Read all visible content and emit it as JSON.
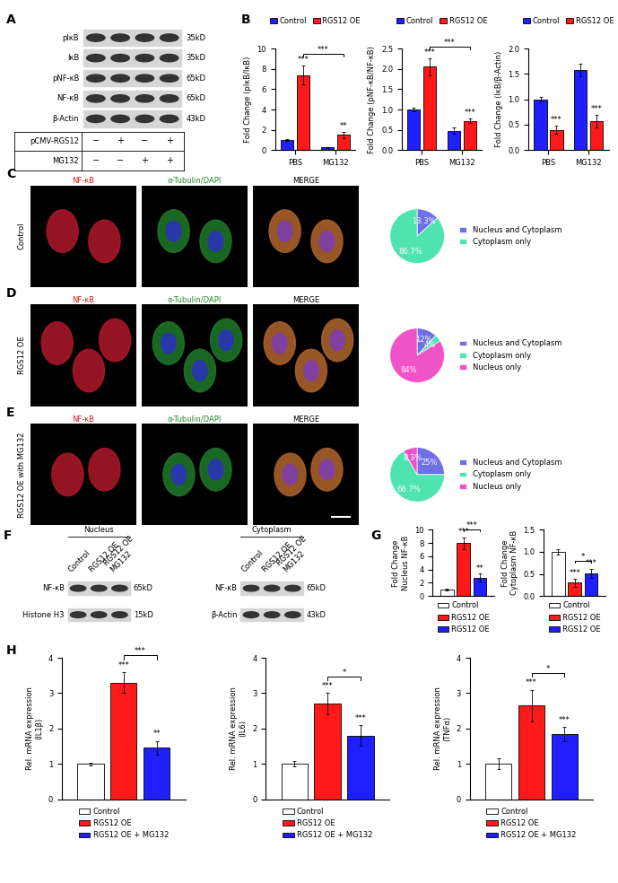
{
  "panel_labels": [
    "A",
    "B",
    "C",
    "D",
    "E",
    "F",
    "G",
    "H"
  ],
  "blot_A": {
    "rows": [
      {
        "name": "pIκB",
        "size": "35kD"
      },
      {
        "name": "IκB",
        "size": "35kD"
      },
      {
        "name": "pNF-κB",
        "size": "65kD"
      },
      {
        "name": "NF-κB",
        "size": "65kD"
      },
      {
        "name": "β-Actin",
        "size": "43kD"
      }
    ],
    "conditions": [
      {
        "name": "pCMV-RGS12",
        "signs": [
          "−",
          "+",
          "−",
          "+"
        ]
      },
      {
        "name": "MG132",
        "signs": [
          "−",
          "−",
          "+",
          "+"
        ]
      }
    ]
  },
  "micrographs": {
    "columns": [
      "NF-κB",
      "α-Tubulin/DAPI",
      "MERGE"
    ],
    "rows": [
      "Control",
      "RGS12 OE",
      "RGS12 OE with MG132"
    ]
  },
  "blot_F": {
    "lanes": [
      "Control",
      "RGS12 OE",
      "RGS12 OE\nMG132"
    ],
    "fractions": [
      {
        "title": "Nucleus",
        "rows": [
          {
            "name": "NF-κB",
            "size": "65kD"
          },
          {
            "name": "Histone H3",
            "size": "15kD"
          }
        ]
      },
      {
        "title": "Cytoplasm",
        "rows": [
          {
            "name": "NF-κB",
            "size": "65kD"
          },
          {
            "name": "β-Actin",
            "size": "43kD"
          }
        ]
      }
    ]
  },
  "chart_data": [
    {
      "type": "bar",
      "ylabel": "Fold Change (pIκB/IκB)",
      "categories": [
        "PBS",
        "MG132"
      ],
      "series": [
        {
          "name": "Control",
          "color": "#1f1fff",
          "values": [
            1.0,
            0.25
          ],
          "errors": [
            0.08,
            0.04
          ]
        },
        {
          "name": "RGS12 OE",
          "color": "#ff1a1a",
          "values": [
            7.4,
            1.5
          ],
          "errors": [
            0.9,
            0.3
          ]
        }
      ],
      "ylim": [
        0,
        10
      ],
      "yticks": [
        0,
        2,
        4,
        6,
        8,
        10
      ],
      "legend": "top",
      "annotations": [
        {
          "series": 1,
          "category": 0,
          "text": "***"
        },
        {
          "series": 1,
          "category": 1,
          "text": "**"
        }
      ],
      "brackets": [
        {
          "from": [
            1,
            0
          ],
          "to": [
            1,
            1
          ],
          "text": "***"
        }
      ]
    },
    {
      "type": "bar",
      "ylabel": "Fold Change (pNF-κB/NF-κB)",
      "categories": [
        "PBS",
        "MG132"
      ],
      "series": [
        {
          "name": "Control",
          "color": "#1f1fff",
          "values": [
            1.0,
            0.48
          ],
          "errors": [
            0.05,
            0.07
          ]
        },
        {
          "name": "RGS12 OE",
          "color": "#ff1a1a",
          "values": [
            2.05,
            0.72
          ],
          "errors": [
            0.2,
            0.05
          ]
        }
      ],
      "ylim": [
        0,
        2.5
      ],
      "yticks": [
        {
          "value": 0,
          "label": "0.0"
        },
        0.5,
        {
          "value": 1,
          "label": "1.0"
        },
        1.5,
        {
          "value": 2,
          "label": "2.0"
        },
        2.5
      ],
      "legend": "top",
      "annotations": [
        {
          "series": 1,
          "category": 0,
          "text": "***"
        },
        {
          "series": 1,
          "category": 1,
          "text": "***"
        }
      ],
      "brackets": [
        {
          "from": [
            1,
            0
          ],
          "to": [
            1,
            1
          ],
          "text": "***"
        }
      ]
    },
    {
      "type": "bar",
      "ylabel": "Fold Change (IκB/β-Actin)",
      "categories": [
        "PBS",
        "MG132"
      ],
      "series": [
        {
          "name": "Control",
          "color": "#1f1fff",
          "values": [
            1.0,
            1.58
          ],
          "errors": [
            0.04,
            0.12
          ]
        },
        {
          "name": "RGS12 OE",
          "color": "#ff1a1a",
          "values": [
            0.4,
            0.57
          ],
          "errors": [
            0.08,
            0.12
          ]
        }
      ],
      "ylim": [
        0,
        2.0
      ],
      "yticks": [
        {
          "value": 0,
          "label": "0.0"
        },
        0.5,
        {
          "value": 1,
          "label": "1.0"
        },
        1.5,
        {
          "value": 2,
          "label": "2.0"
        }
      ],
      "legend": "top",
      "annotations": [
        {
          "series": 1,
          "category": 0,
          "text": "***"
        },
        {
          "series": 1,
          "category": 1,
          "text": "***"
        }
      ],
      "brackets": []
    },
    {
      "type": "pie",
      "categories": [
        "Nucleus and Cytoplasm",
        "Cytoplasm only"
      ],
      "values": [
        13.3,
        86.7
      ],
      "value_labels": [
        "13.3%",
        "86.7%"
      ],
      "colors": [
        "#6f6fe8",
        "#4fe3b0"
      ],
      "data_labels": true,
      "legend": "right"
    },
    {
      "type": "pie",
      "categories": [
        "Nucleus and Cytoplasm",
        "Cytoplasm only",
        "Nucleus only"
      ],
      "values": [
        12,
        4,
        84
      ],
      "value_labels": [
        "12%",
        "4%",
        "84%"
      ],
      "colors": [
        "#6f6fe8",
        "#4fe3b0",
        "#f052c8"
      ],
      "data_labels": true,
      "legend": "right"
    },
    {
      "type": "pie",
      "categories": [
        "Nucleus and Cytoplasm",
        "Cytoplasm only",
        "Nucleus only"
      ],
      "values": [
        25,
        66.7,
        8.3
      ],
      "value_labels": [
        "25%",
        "66.7%",
        "8.3%"
      ],
      "colors": [
        "#6f6fe8",
        "#4fe3b0",
        "#f052c8"
      ],
      "data_labels": true,
      "legend": "right"
    },
    {
      "type": "bar",
      "ylabel": "Fold Change\nNucleus NF-κB",
      "categories": [
        null
      ],
      "tick_labels": "y",
      "series": [
        {
          "name": "Control",
          "color": "#ffffff",
          "values": [
            1.0
          ],
          "errors": [
            0.15
          ]
        },
        {
          "name": "RGS12 OE",
          "color": "#ff1a1a",
          "values": [
            8.0
          ],
          "errors": [
            0.9
          ]
        },
        {
          "name": "RGS12 OE",
          "color": "#1f1fff",
          "values": [
            2.8
          ],
          "errors": [
            0.6
          ]
        }
      ],
      "ylim": [
        0,
        10
      ],
      "yticks": [
        0,
        2,
        4,
        6,
        8,
        10
      ],
      "legend": "bottom",
      "annotations": [
        {
          "series": 1,
          "category": 0,
          "text": "***"
        },
        {
          "series": 2,
          "category": 0,
          "text": "**"
        }
      ],
      "brackets": [
        {
          "from": [
            1,
            0
          ],
          "to": [
            2,
            0
          ],
          "text": "***"
        }
      ]
    },
    {
      "type": "bar",
      "ylabel": "Fold Change\nCytoplasm NF-κB",
      "categories": [
        null
      ],
      "tick_labels": "y",
      "series": [
        {
          "name": "Control",
          "color": "#ffffff",
          "values": [
            1.0
          ],
          "errors": [
            0.06
          ]
        },
        {
          "name": "RGS12 OE",
          "color": "#ff1a1a",
          "values": [
            0.3
          ],
          "errors": [
            0.1
          ]
        },
        {
          "name": "RGS12 OE",
          "color": "#1f1fff",
          "values": [
            0.52
          ],
          "errors": [
            0.1
          ]
        }
      ],
      "ylim": [
        0,
        1.5
      ],
      "yticks": [
        {
          "value": 0,
          "label": "0.0"
        },
        0.5,
        {
          "value": 1,
          "label": "1.0"
        },
        1.5
      ],
      "legend": "bottom",
      "annotations": [
        {
          "series": 1,
          "category": 0,
          "text": "***"
        },
        {
          "series": 2,
          "category": 0,
          "text": "***"
        }
      ],
      "brackets": [
        {
          "from": [
            1,
            0
          ],
          "to": [
            2,
            0
          ],
          "text": "*"
        }
      ]
    },
    {
      "type": "bar",
      "ylabel": "Rel. mRNA expression\n(IL1β)",
      "categories": [
        null
      ],
      "tick_labels": "y",
      "series": [
        {
          "name": "Control",
          "color": "#ffffff",
          "values": [
            1.0
          ],
          "errors": [
            0.04
          ]
        },
        {
          "name": "RGS12 OE",
          "color": "#ff1a1a",
          "values": [
            3.3
          ],
          "errors": [
            0.3
          ]
        },
        {
          "name": "RGS12 OE + MG132",
          "color": "#1f1fff",
          "values": [
            1.45
          ],
          "errors": [
            0.2
          ]
        }
      ],
      "ylim": [
        0,
        4
      ],
      "yticks": [
        0,
        1,
        2,
        3,
        4
      ],
      "legend": "bottom",
      "annotations": [
        {
          "series": 1,
          "category": 0,
          "text": "***"
        },
        {
          "series": 2,
          "category": 0,
          "text": "**"
        }
      ],
      "brackets": [
        {
          "from": [
            1,
            0
          ],
          "to": [
            2,
            0
          ],
          "text": "***"
        }
      ]
    },
    {
      "type": "bar",
      "ylabel": "Rel. mRNA expression\n(IL6)",
      "categories": [
        null
      ],
      "tick_labels": "y",
      "series": [
        {
          "name": "Control",
          "color": "#ffffff",
          "values": [
            1.0
          ],
          "errors": [
            0.08
          ]
        },
        {
          "name": "RGS12 OE",
          "color": "#ff1a1a",
          "values": [
            2.7
          ],
          "errors": [
            0.3
          ]
        },
        {
          "name": "RGS12 OE + MG132",
          "color": "#1f1fff",
          "values": [
            1.8
          ],
          "errors": [
            0.3
          ]
        }
      ],
      "ylim": [
        0,
        4
      ],
      "yticks": [
        0,
        1,
        2,
        3,
        4
      ],
      "legend": "bottom",
      "annotations": [
        {
          "series": 1,
          "category": 0,
          "text": "***"
        },
        {
          "series": 2,
          "category": 0,
          "text": "***"
        }
      ],
      "brackets": [
        {
          "from": [
            1,
            0
          ],
          "to": [
            2,
            0
          ],
          "text": "*"
        }
      ]
    },
    {
      "type": "bar",
      "ylabel": "Rel. mRNA expression\n(TNFα)",
      "categories": [
        null
      ],
      "tick_labels": "y",
      "series": [
        {
          "name": "Control",
          "color": "#ffffff",
          "values": [
            1.0
          ],
          "errors": [
            0.15
          ]
        },
        {
          "name": "RGS12 OE",
          "color": "#ff1a1a",
          "values": [
            2.65
          ],
          "errors": [
            0.45
          ]
        },
        {
          "name": "RGS12 OE + MG132",
          "color": "#1f1fff",
          "values": [
            1.85
          ],
          "errors": [
            0.2
          ]
        }
      ],
      "ylim": [
        0,
        4
      ],
      "yticks": [
        0,
        1,
        2,
        3,
        4
      ],
      "legend": "bottom",
      "annotations": [
        {
          "series": 1,
          "category": 0,
          "text": "***"
        },
        {
          "series": 2,
          "category": 0,
          "text": "***"
        }
      ],
      "brackets": [
        {
          "from": [
            1,
            0
          ],
          "to": [
            2,
            0
          ],
          "text": "*"
        }
      ]
    }
  ]
}
